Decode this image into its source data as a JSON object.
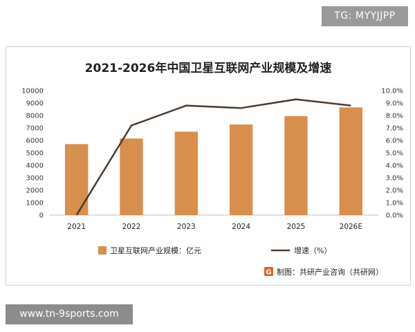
{
  "badges": {
    "top_right": "TG: MYYJJPP",
    "bottom_left": "www.tn-9sports.com"
  },
  "source": {
    "logo_glyph": "G",
    "text": "制图：共研产业咨询（共研网）"
  },
  "colors": {
    "bar": "#d88e4c",
    "line": "#4a3a2e",
    "logo": "#e0632a"
  },
  "chart_data": {
    "type": "bar",
    "title": "2021-2026年中国卫星互联网产业规模及增速",
    "categories": [
      "2021",
      "2022",
      "2023",
      "2024",
      "2025",
      "2026E"
    ],
    "series": [
      {
        "name": "卫星互联网产业规模：亿元",
        "type": "bar",
        "axis": "left",
        "values": [
          5700,
          6150,
          6700,
          7280,
          7950,
          8650
        ]
      },
      {
        "name": "增速（%）",
        "type": "line",
        "axis": "right",
        "values": [
          0.0,
          7.2,
          8.8,
          8.6,
          9.3,
          8.8
        ]
      }
    ],
    "y_left": {
      "min": 0,
      "max": 10000,
      "ticks": [
        "0",
        "1000",
        "2000",
        "3000",
        "4000",
        "5000",
        "6000",
        "7000",
        "8000",
        "9000",
        "10000"
      ]
    },
    "y_right": {
      "min": 0,
      "max": 10,
      "ticks": [
        "0.0%",
        "1.0%",
        "2.0%",
        "3.0%",
        "4.0%",
        "5.0%",
        "6.0%",
        "7.0%",
        "8.0%",
        "9.0%",
        "10.0%"
      ]
    },
    "grid": false,
    "legend": "bottom"
  }
}
